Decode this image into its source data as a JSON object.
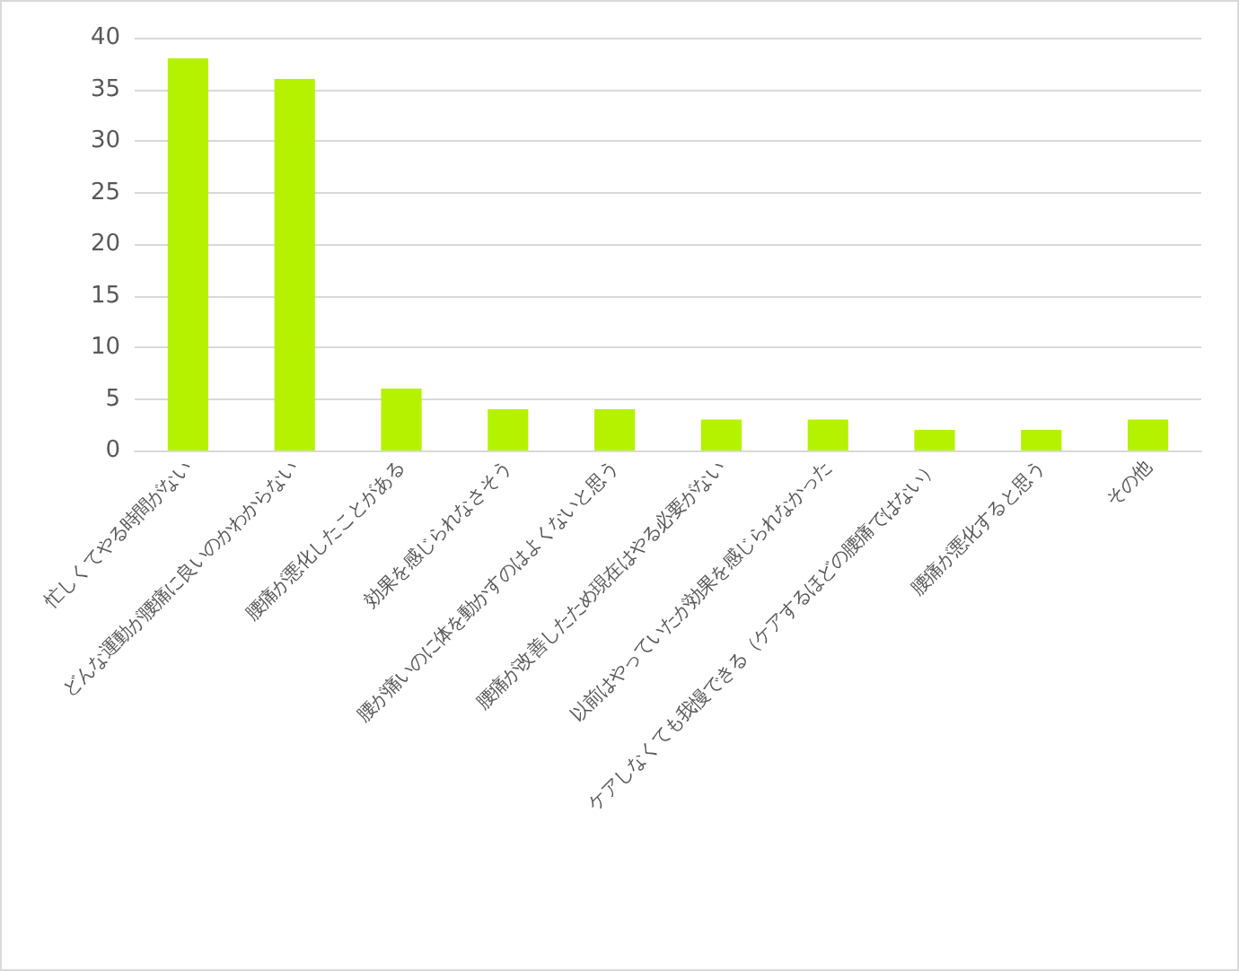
{
  "chart_data": {
    "type": "bar",
    "categories": [
      "忙しくてやる時間がない",
      "どんな運動が腰痛に良いのかわからない",
      "腰痛が悪化したことがある",
      "効果を感じられなさそう",
      "腰が痛いのに体を動かすのはよくないと思う",
      "腰痛が改善したため現在はやる必要がない",
      "以前はやっていたが効果を感じられなかった",
      "ケアしなくても我慢できる（ケアするほどの腰痛ではない）",
      "腰痛が悪化すると思う",
      "その他"
    ],
    "values": [
      38,
      36,
      6,
      4,
      4,
      3,
      3,
      2,
      2,
      3
    ],
    "color": "#b5f200",
    "ylim": [
      0,
      40
    ],
    "yticks": [
      0,
      5,
      10,
      15,
      20,
      25,
      30,
      35,
      40
    ],
    "grid": "y"
  }
}
